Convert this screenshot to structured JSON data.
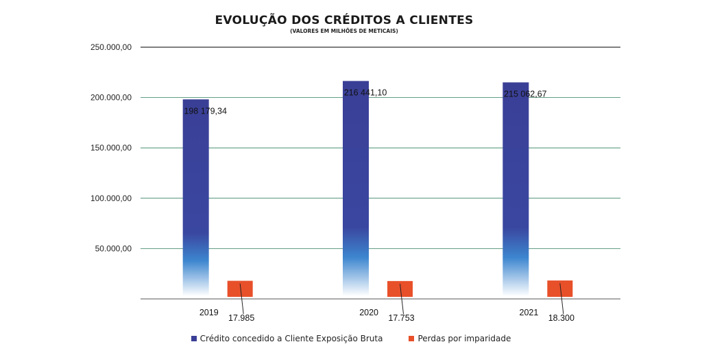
{
  "chart_data": {
    "type": "bar",
    "title": "EVOLUÇÃO DOS CRÉDITOS A CLIENTES",
    "subtitle": "(VALORES EM MILHÕES DE METICAIS)",
    "categories": [
      "2019",
      "2020",
      "2021"
    ],
    "series": [
      {
        "name": "Crédito concedido a Cliente Exposição Bruta",
        "values": [
          198179.34,
          216441.1,
          215062.67
        ],
        "labels": [
          "198 179,34",
          "216 441,10",
          "215 062,67"
        ],
        "color": "#3a3f96"
      },
      {
        "name": "Perdas por imparidade",
        "values": [
          17985,
          17753,
          18300
        ],
        "labels": [
          "17.985",
          "17.753",
          "18.300"
        ],
        "color": "#e8502a"
      }
    ],
    "ylim": [
      0,
      250000
    ],
    "yticks": [
      0,
      50000,
      100000,
      150000,
      200000,
      250000
    ],
    "ytick_labels": [
      "",
      "50.000,00",
      "100.000,00",
      "150.000,00",
      "200.000,00",
      "250.000,00"
    ],
    "grid": true,
    "legend_position": "bottom"
  }
}
